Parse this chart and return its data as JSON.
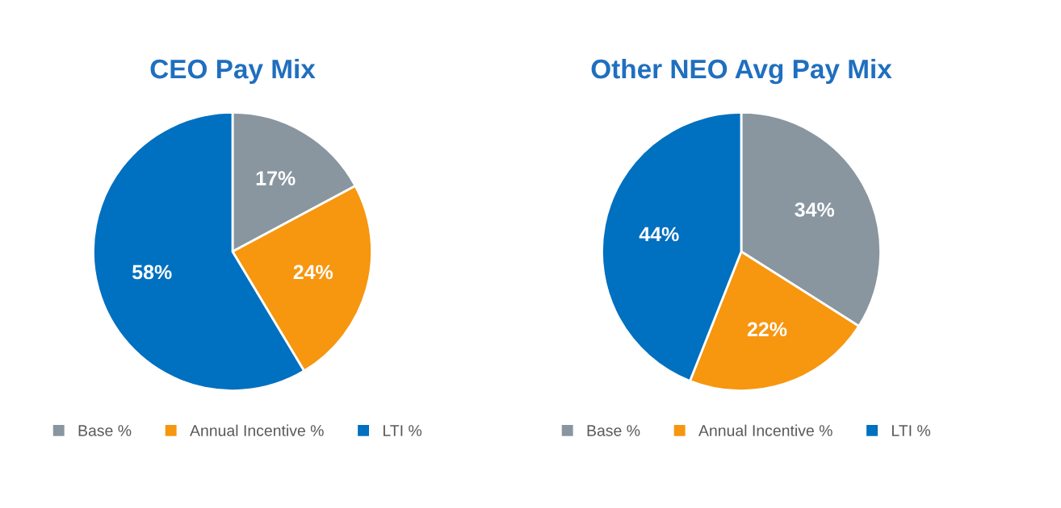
{
  "chart_data": [
    {
      "type": "pie",
      "title": "CEO Pay Mix",
      "categories": [
        "Base %",
        "Annual Incentive %",
        "LTI %"
      ],
      "values": [
        17,
        24,
        58
      ],
      "value_labels": [
        "17%",
        "24%",
        "58%"
      ],
      "colors": [
        "#8996a0",
        "#f7960f",
        "#0070c0"
      ],
      "legend": "bottom"
    },
    {
      "type": "pie",
      "title": "Other NEO Avg Pay Mix",
      "categories": [
        "Base %",
        "Annual Incentive %",
        "LTI %"
      ],
      "values": [
        34,
        22,
        44
      ],
      "value_labels": [
        "34%",
        "22%",
        "44%"
      ],
      "colors": [
        "#8996a0",
        "#f7960f",
        "#0070c0"
      ],
      "legend": "bottom"
    }
  ]
}
